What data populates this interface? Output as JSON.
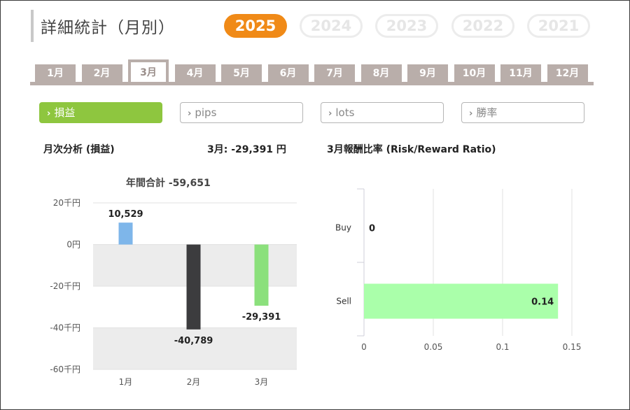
{
  "page": {
    "title": "詳細統計（月別）"
  },
  "years": [
    {
      "label": "2025",
      "active": true
    },
    {
      "label": "2024",
      "active": false
    },
    {
      "label": "2023",
      "active": false
    },
    {
      "label": "2022",
      "active": false
    },
    {
      "label": "2021",
      "active": false
    }
  ],
  "months": [
    {
      "label": "1月",
      "active": false
    },
    {
      "label": "2月",
      "active": false
    },
    {
      "label": "3月",
      "active": true
    },
    {
      "label": "4月",
      "active": false
    },
    {
      "label": "5月",
      "active": false
    },
    {
      "label": "6月",
      "active": false
    },
    {
      "label": "7月",
      "active": false
    },
    {
      "label": "8月",
      "active": false
    },
    {
      "label": "9月",
      "active": false
    },
    {
      "label": "10月",
      "active": false
    },
    {
      "label": "11月",
      "active": false
    },
    {
      "label": "12月",
      "active": false
    }
  ],
  "metrics": [
    {
      "label": "損益",
      "active": true
    },
    {
      "label": "pips",
      "active": false
    },
    {
      "label": "lots",
      "active": false
    },
    {
      "label": "勝率",
      "active": false
    }
  ],
  "left_panel": {
    "heading": "月次分析 (損益)",
    "month_total": "3月:  -29,391 円",
    "annual_total": "年間合計 -59,651"
  },
  "right_panel": {
    "heading": "3月報酬比率 (Risk/Reward Ratio)"
  },
  "colors": {
    "accent_orange": "#f08a17",
    "accent_green": "#8ec63f",
    "tab_gray": "#b9aeaa"
  },
  "chart_data": [
    {
      "type": "bar",
      "categories": [
        "1月",
        "2月",
        "3月"
      ],
      "values": [
        10529,
        -40789,
        -29391
      ],
      "data_labels": [
        "10,529",
        "-40,789",
        "-29,391"
      ],
      "bar_colors": [
        "#7eb6ea",
        "#3c3c3e",
        "#8be07c"
      ],
      "ylim": [
        -60000,
        20000
      ],
      "yticks": [
        {
          "value": 20000,
          "label": "20千円"
        },
        {
          "value": 0,
          "label": "0円"
        },
        {
          "value": -20000,
          "label": "-20千円"
        },
        {
          "value": -40000,
          "label": "-40千円"
        },
        {
          "value": -60000,
          "label": "-60千円"
        }
      ],
      "grid": true,
      "band_color": "#ececec"
    },
    {
      "type": "bar",
      "orientation": "horizontal",
      "categories": [
        "Buy",
        "Sell"
      ],
      "values": [
        0,
        0.14
      ],
      "data_labels": [
        "0",
        "0.14"
      ],
      "bar_color": "#aaffaa",
      "xlim": [
        0,
        0.15
      ],
      "xticks": [
        {
          "value": 0,
          "label": "0"
        },
        {
          "value": 0.05,
          "label": "0.05"
        },
        {
          "value": 0.1,
          "label": "0.1"
        },
        {
          "value": 0.15,
          "label": "0.15"
        }
      ],
      "grid": true
    }
  ]
}
